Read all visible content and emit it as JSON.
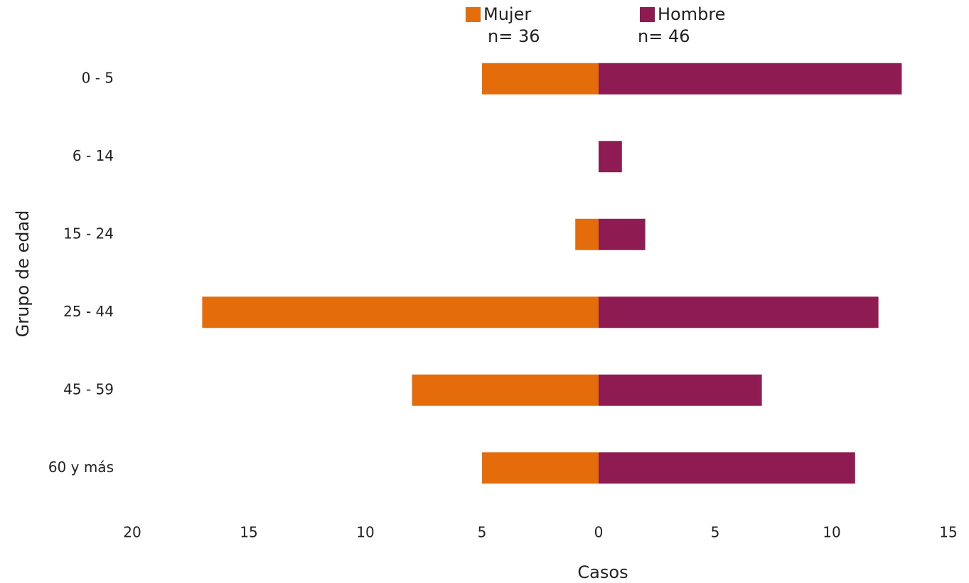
{
  "chart_data": {
    "type": "bar",
    "orientation": "horizontal",
    "y_label": "Grupo de edad",
    "x_label": "Casos",
    "categories": [
      "0 - 5",
      "6 - 14",
      "15 - 24",
      "25 - 44",
      "45 - 59",
      "60 y más"
    ],
    "series": [
      {
        "name": "Mujer",
        "note": "n= 36",
        "color": "#e46c0a",
        "values": [
          -5,
          0,
          -1,
          -17,
          -8,
          -5
        ]
      },
      {
        "name": "Hombre",
        "note": "n= 46",
        "color": "#8e1b52",
        "values": [
          13,
          1,
          2,
          12,
          7,
          11
        ]
      }
    ],
    "xlim": [
      -20,
      15
    ],
    "xticks": [
      {
        "value": -20,
        "label": "20"
      },
      {
        "value": -15,
        "label": "15"
      },
      {
        "value": -10,
        "label": "10"
      },
      {
        "value": -5,
        "label": "5"
      },
      0,
      5,
      10,
      15
    ],
    "grid": false
  }
}
